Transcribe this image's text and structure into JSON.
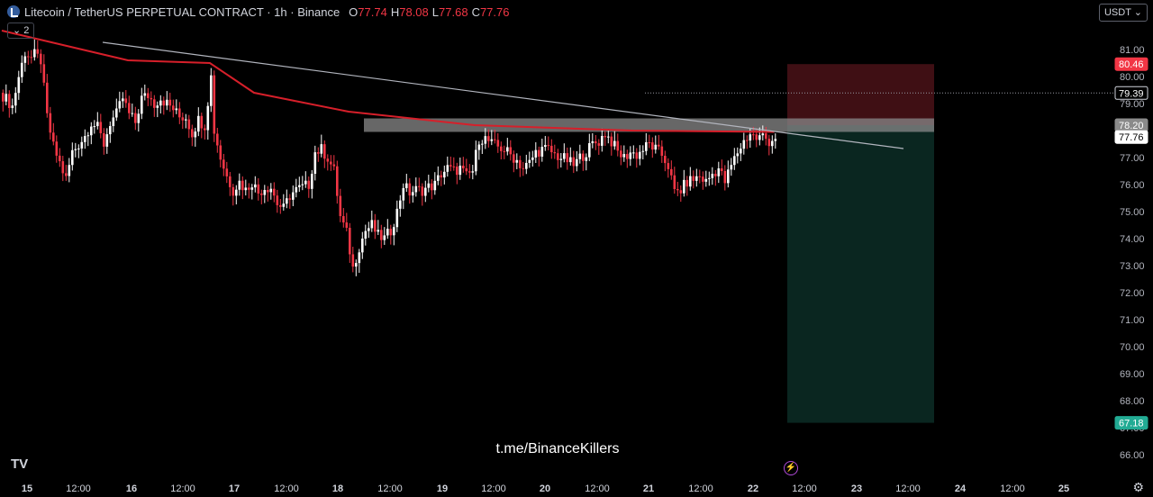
{
  "header": {
    "symbol_icon": "litecoin-icon",
    "title": "Litecoin / TetherUS PERPETUAL CONTRACT · 1h · Binance",
    "open_label": "O",
    "open": "77.74",
    "high_label": "H",
    "high": "78.08",
    "low_label": "L",
    "low": "77.68",
    "close_label": "C",
    "close": "77.76"
  },
  "indicator_badge": "⌄ 2",
  "currency_selector": "USDT ⌄",
  "watermark": "t.me/BinanceKillers",
  "logo": "TV",
  "colors": {
    "up": "#ffffff",
    "down": "#f23645",
    "ma": "#d61f2a",
    "trendline": "#b2b5be",
    "zone": "#8a8a8a",
    "stop_zone": "#4a1218",
    "target_zone": "#0b2a24",
    "stop_label": "#f23645",
    "target_label": "#22ab94",
    "axis_text": "#b2b5be"
  },
  "chart_data": {
    "type": "candlestick",
    "x_axis_ticks": [
      "15",
      "12:00",
      "16",
      "12:00",
      "17",
      "12:00",
      "18",
      "12:00",
      "19",
      "12:00",
      "20",
      "12:00",
      "21",
      "12:00",
      "22",
      "12:00",
      "23",
      "12:00",
      "24",
      "12:00",
      "25"
    ],
    "y_axis_ticks": [
      "81.00",
      "80.00",
      "79.00",
      "78.00",
      "77.00",
      "76.00",
      "75.00",
      "74.00",
      "73.00",
      "72.00",
      "71.00",
      "70.00",
      "69.00",
      "68.00",
      "67.00",
      "66.00"
    ],
    "ylim": [
      65.5,
      81.9
    ],
    "price_labels": {
      "stop": "80.46",
      "level": "79.39",
      "entry": "78.20",
      "last": "77.76",
      "target": "67.18"
    },
    "close_path": [
      [
        0,
        79.3
      ],
      [
        3,
        78.9
      ],
      [
        5,
        80.0
      ],
      [
        7,
        80.9
      ],
      [
        9,
        80.7
      ],
      [
        10,
        80.8
      ],
      [
        12,
        80.6
      ],
      [
        14,
        78.5
      ],
      [
        16,
        77.4
      ],
      [
        18,
        76.8
      ],
      [
        20,
        76.2
      ],
      [
        22,
        77.2
      ],
      [
        24,
        77.5
      ],
      [
        26,
        77.8
      ],
      [
        28,
        78.3
      ],
      [
        30,
        78.1
      ],
      [
        32,
        77.5
      ],
      [
        34,
        78.3
      ],
      [
        36,
        78.6
      ],
      [
        38,
        79.2
      ],
      [
        40,
        78.6
      ],
      [
        42,
        78.3
      ],
      [
        44,
        79.2
      ],
      [
        46,
        79.3
      ],
      [
        48,
        79.0
      ],
      [
        50,
        79.2
      ],
      [
        52,
        79.0
      ],
      [
        54,
        78.8
      ],
      [
        56,
        78.5
      ],
      [
        58,
        78.5
      ],
      [
        60,
        77.9
      ],
      [
        62,
        78.4
      ],
      [
        64,
        78.2
      ],
      [
        66,
        80.0
      ],
      [
        67,
        78.0
      ],
      [
        69,
        77.0
      ],
      [
        71,
        76.3
      ],
      [
        73,
        75.8
      ],
      [
        75,
        76.1
      ],
      [
        77,
        75.8
      ],
      [
        79,
        76.1
      ],
      [
        81,
        75.7
      ],
      [
        83,
        75.9
      ],
      [
        85,
        75.9
      ],
      [
        87,
        75.3
      ],
      [
        89,
        75.1
      ],
      [
        91,
        75.6
      ],
      [
        93,
        75.8
      ],
      [
        95,
        75.9
      ],
      [
        97,
        76.0
      ],
      [
        99,
        77.2
      ],
      [
        101,
        77.3
      ],
      [
        103,
        77.0
      ],
      [
        105,
        76.5
      ],
      [
        107,
        74.8
      ],
      [
        109,
        74.2
      ],
      [
        111,
        72.9
      ],
      [
        113,
        73.7
      ],
      [
        115,
        74.3
      ],
      [
        117,
        74.5
      ],
      [
        119,
        74.1
      ],
      [
        121,
        74.0
      ],
      [
        123,
        74.3
      ],
      [
        125,
        75.0
      ],
      [
        127,
        76.0
      ],
      [
        129,
        75.7
      ],
      [
        131,
        75.8
      ],
      [
        133,
        75.8
      ],
      [
        135,
        75.9
      ],
      [
        137,
        76.0
      ],
      [
        139,
        76.4
      ],
      [
        141,
        76.6
      ],
      [
        143,
        76.5
      ],
      [
        145,
        76.6
      ],
      [
        147,
        76.3
      ],
      [
        149,
        76.5
      ],
      [
        151,
        77.7
      ],
      [
        153,
        77.7
      ],
      [
        155,
        77.5
      ],
      [
        157,
        77.4
      ],
      [
        159,
        77.3
      ],
      [
        161,
        77.1
      ],
      [
        163,
        76.9
      ],
      [
        165,
        76.6
      ],
      [
        167,
        76.8
      ],
      [
        169,
        77.2
      ],
      [
        171,
        77.3
      ],
      [
        173,
        77.3
      ],
      [
        175,
        77.1
      ],
      [
        177,
        77.0
      ],
      [
        179,
        76.9
      ],
      [
        181,
        76.7
      ],
      [
        183,
        77.0
      ],
      [
        185,
        77.2
      ],
      [
        187,
        77.5
      ],
      [
        189,
        77.6
      ],
      [
        191,
        77.9
      ],
      [
        193,
        77.6
      ],
      [
        195,
        77.2
      ],
      [
        197,
        77.0
      ],
      [
        199,
        77.2
      ],
      [
        201,
        77.1
      ],
      [
        203,
        77.3
      ],
      [
        205,
        77.5
      ],
      [
        207,
        77.3
      ],
      [
        209,
        77.1
      ],
      [
        211,
        76.7
      ],
      [
        213,
        75.7
      ],
      [
        215,
        75.8
      ],
      [
        217,
        76.1
      ],
      [
        219,
        76.2
      ],
      [
        221,
        76.3
      ],
      [
        223,
        76.1
      ],
      [
        225,
        76.4
      ],
      [
        227,
        76.6
      ],
      [
        229,
        76.1
      ],
      [
        231,
        76.7
      ],
      [
        233,
        77.2
      ],
      [
        235,
        77.6
      ],
      [
        237,
        77.9
      ],
      [
        239,
        77.7
      ],
      [
        241,
        77.8
      ],
      [
        243,
        77.6
      ],
      [
        245,
        77.76
      ]
    ],
    "ma_path": [
      [
        0,
        81.7
      ],
      [
        40,
        80.6
      ],
      [
        66,
        80.5
      ],
      [
        80,
        79.4
      ],
      [
        110,
        78.7
      ],
      [
        150,
        78.2
      ],
      [
        200,
        78.0
      ],
      [
        245,
        77.95
      ]
    ],
    "trendline": [
      [
        12,
        81.2
      ],
      [
        230,
        77.5
      ]
    ],
    "resistance_zone": [
      78.45,
      77.95
    ],
    "position": {
      "stop": 80.46,
      "entry": 78.2,
      "target": 67.18
    }
  }
}
